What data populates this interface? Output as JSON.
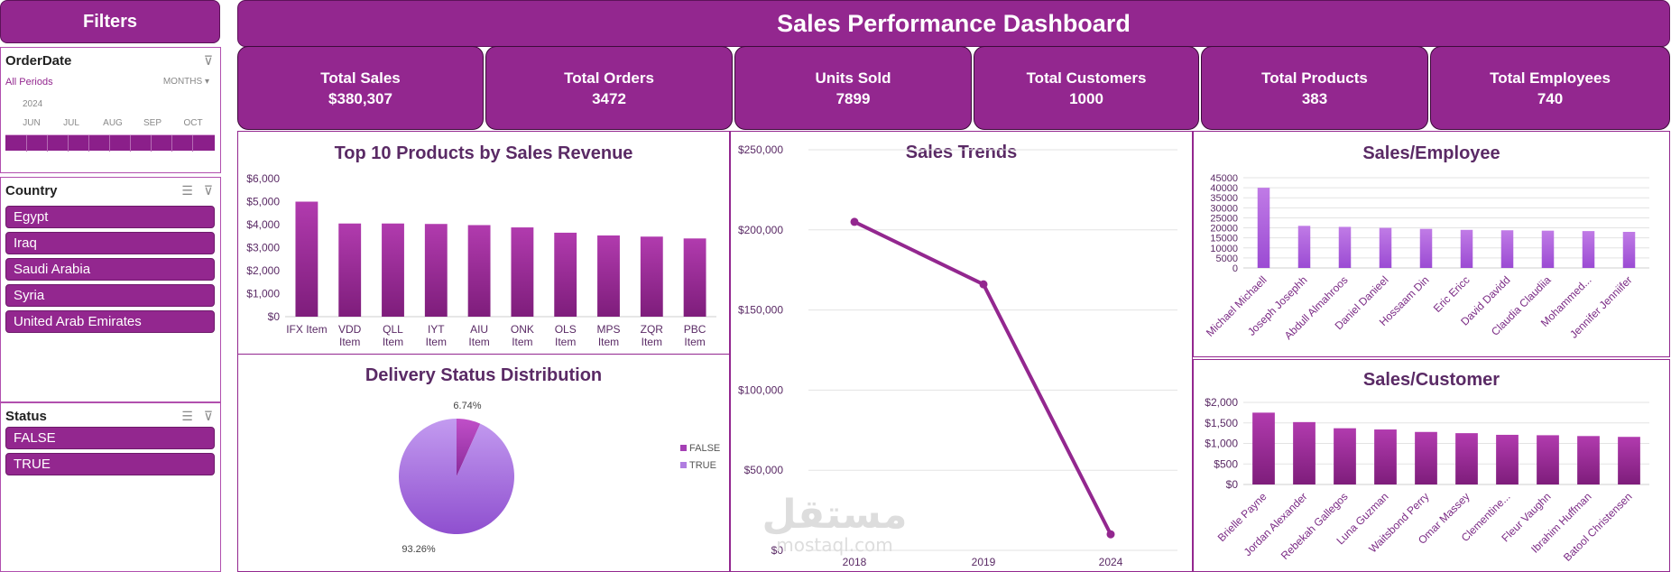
{
  "filters": {
    "title": "Filters"
  },
  "timeline": {
    "title": "OrderDate",
    "all_periods": "All Periods",
    "level": "MONTHS",
    "level_arrow": "▾",
    "year": "2024",
    "months": [
      "JUN",
      "JUL",
      "AUG",
      "SEP",
      "OCT"
    ],
    "clear_icon": "filter-clear-icon"
  },
  "country": {
    "title": "Country",
    "items": [
      "Egypt",
      "Iraq",
      "Saudi Arabia",
      "Syria",
      "United Arab Emirates"
    ],
    "multi_select_icon": "multi-select-icon",
    "clear_icon": "filter-clear-icon"
  },
  "status": {
    "title": "Status",
    "items": [
      "FALSE",
      "TRUE"
    ],
    "multi_select_icon": "multi-select-icon",
    "clear_icon": "filter-clear-icon"
  },
  "dashboard": {
    "title": "Sales Performance Dashboard"
  },
  "kpis": [
    {
      "label": "Total Sales",
      "value": "$380,307"
    },
    {
      "label": "Total Orders",
      "value": "3472"
    },
    {
      "label": "Units Sold",
      "value": "7899"
    },
    {
      "label": "Total Customers",
      "value": "1000"
    },
    {
      "label": "Total Products",
      "value": "383"
    },
    {
      "label": "Total Employees",
      "value": "740"
    }
  ],
  "colors": {
    "accent": "#93278f",
    "bar_top": "#b13bae",
    "bar_bottom": "#7e1d7b",
    "pie_false": "#a53fb5",
    "pie_true": "#b07de0",
    "line": "#93278f"
  },
  "chart_data": [
    {
      "id": "top_products",
      "type": "bar",
      "title": "Top 10 Products by Sales Revenue",
      "categories": [
        "IFX Item",
        "VDD Item",
        "QLL Item",
        "IYT Item",
        "AIU Item",
        "ONK Item",
        "OLS Item",
        "MPS Item",
        "ZQR Item",
        "PBC Item"
      ],
      "values": [
        5000,
        4050,
        4050,
        4030,
        3980,
        3880,
        3650,
        3530,
        3480,
        3400
      ],
      "yticks": [
        "$0",
        "$1,000",
        "$2,000",
        "$3,000",
        "$4,000",
        "$5,000",
        "$6,000"
      ],
      "ylim": [
        0,
        6000
      ]
    },
    {
      "id": "sales_trends",
      "type": "line",
      "title": "Sales Trends",
      "x": [
        "2018",
        "2019",
        "2024"
      ],
      "values": [
        205000,
        166000,
        10000
      ],
      "yticks": [
        "$0",
        "$50,000",
        "$100,000",
        "$150,000",
        "$200,000",
        "$250,000"
      ],
      "ylim": [
        0,
        250000
      ],
      "grid": true
    },
    {
      "id": "sales_employee",
      "type": "bar",
      "title": "Sales/Employee",
      "categories": [
        "Michael Michaell",
        "Joseph Josephh",
        "Abdull Almahroos",
        "Daniel Danieel",
        "Hossaam Din",
        "Eric Ericc",
        "David Davidd",
        "Claudia Claudiia",
        "Mohammed...",
        "Jennifer Jenniifer"
      ],
      "values": [
        40000,
        21000,
        20500,
        20000,
        19500,
        19000,
        18800,
        18600,
        18400,
        18000
      ],
      "yticks": [
        "0",
        "5000",
        "10000",
        "15000",
        "20000",
        "25000",
        "30000",
        "35000",
        "40000",
        "45000"
      ],
      "ylim": [
        0,
        45000
      ],
      "grid": true
    },
    {
      "id": "delivery_status",
      "type": "pie",
      "title": "Delivery Status Distribution",
      "labels": [
        "FALSE",
        "TRUE"
      ],
      "values": [
        6.74,
        93.26
      ],
      "value_labels": [
        "6.74%",
        "93.26%"
      ],
      "legend": "right"
    },
    {
      "id": "sales_customer",
      "type": "bar",
      "title": "Sales/Customer",
      "categories": [
        "Brielle Payne",
        "Jordan Alexander",
        "Rebekah Gallegos",
        "Luna Guzman",
        "Waitsbond Perry",
        "Omar Massey",
        "Clementine...",
        "Fleur Vaughn",
        "Ibrahim Huffman",
        "Batool Christensen"
      ],
      "values": [
        1750,
        1520,
        1370,
        1340,
        1280,
        1250,
        1210,
        1200,
        1180,
        1160
      ],
      "yticks": [
        "$0",
        "$500",
        "$1,000",
        "$1,500",
        "$2,000"
      ],
      "ylim": [
        0,
        2000
      ],
      "grid": true
    }
  ],
  "watermark": {
    "main": "مستقل",
    "sub": "mostaql.com"
  }
}
